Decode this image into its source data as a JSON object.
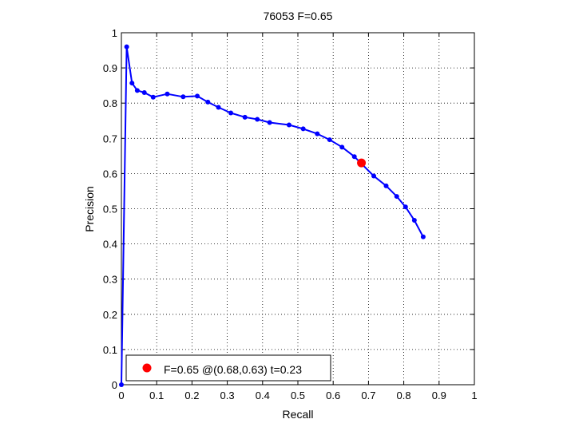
{
  "chart_data": {
    "type": "line",
    "title": "76053 F=0.65",
    "xlabel": "Recall",
    "ylabel": "Precision",
    "xlim": [
      0,
      1
    ],
    "ylim": [
      0,
      1
    ],
    "xticks": [
      "0",
      "0.1",
      "0.2",
      "0.3",
      "0.4",
      "0.5",
      "0.6",
      "0.7",
      "0.8",
      "0.9",
      "1"
    ],
    "yticks": [
      "0",
      "0.1",
      "0.2",
      "0.3",
      "0.4",
      "0.5",
      "0.6",
      "0.7",
      "0.8",
      "0.9",
      "1"
    ],
    "grid": true,
    "legend": {
      "position": "bottom-left",
      "label": "F=0.65 @(0.68,0.63) t=0.23"
    },
    "series": [
      {
        "color": "#0000ff",
        "x": [
          0.0,
          0.015,
          0.03,
          0.045,
          0.065,
          0.09,
          0.13,
          0.175,
          0.215,
          0.245,
          0.275,
          0.31,
          0.35,
          0.385,
          0.42,
          0.475,
          0.515,
          0.555,
          0.59,
          0.625,
          0.66,
          0.715,
          0.75,
          0.78,
          0.805,
          0.83,
          0.855
        ],
        "y": [
          0.0,
          0.96,
          0.857,
          0.836,
          0.83,
          0.817,
          0.826,
          0.818,
          0.82,
          0.803,
          0.788,
          0.772,
          0.76,
          0.754,
          0.745,
          0.738,
          0.727,
          0.713,
          0.696,
          0.675,
          0.648,
          0.593,
          0.565,
          0.535,
          0.505,
          0.467,
          0.42
        ]
      }
    ],
    "highlight": {
      "color": "#ff0000",
      "x": 0.68,
      "y": 0.63
    }
  }
}
